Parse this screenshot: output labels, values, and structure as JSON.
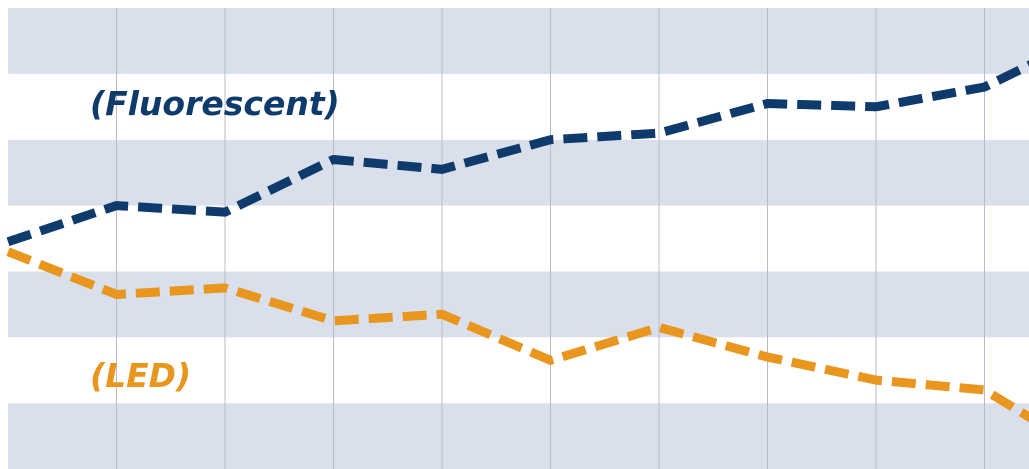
{
  "chart_data": {
    "type": "line",
    "title": "",
    "xlabel": "",
    "ylabel": "",
    "x": [
      0,
      1,
      2,
      3,
      4,
      5,
      6,
      7,
      8,
      9,
      10
    ],
    "ylim": [
      0,
      7
    ],
    "grid": true,
    "legend": "inline",
    "series": [
      {
        "name": "(Fluorescent)",
        "values": [
          3.45,
          4.0,
          3.9,
          4.7,
          4.55,
          5.0,
          5.1,
          5.55,
          5.5,
          5.8,
          6.6
        ],
        "color": "#0e3b6c",
        "style": "dashed",
        "end_marker": "arrow-up-right"
      },
      {
        "name": "(LED)",
        "values": [
          3.3,
          2.65,
          2.75,
          2.25,
          2.35,
          1.65,
          2.15,
          1.7,
          1.35,
          1.2,
          0.2
        ],
        "color": "#e8961e",
        "style": "dashed",
        "end_marker": "arrow-down-right"
      }
    ],
    "background": {
      "band_color": "#d9dfeb",
      "base_color": "#ffffff",
      "grid_color": "#b8bcc8"
    }
  }
}
